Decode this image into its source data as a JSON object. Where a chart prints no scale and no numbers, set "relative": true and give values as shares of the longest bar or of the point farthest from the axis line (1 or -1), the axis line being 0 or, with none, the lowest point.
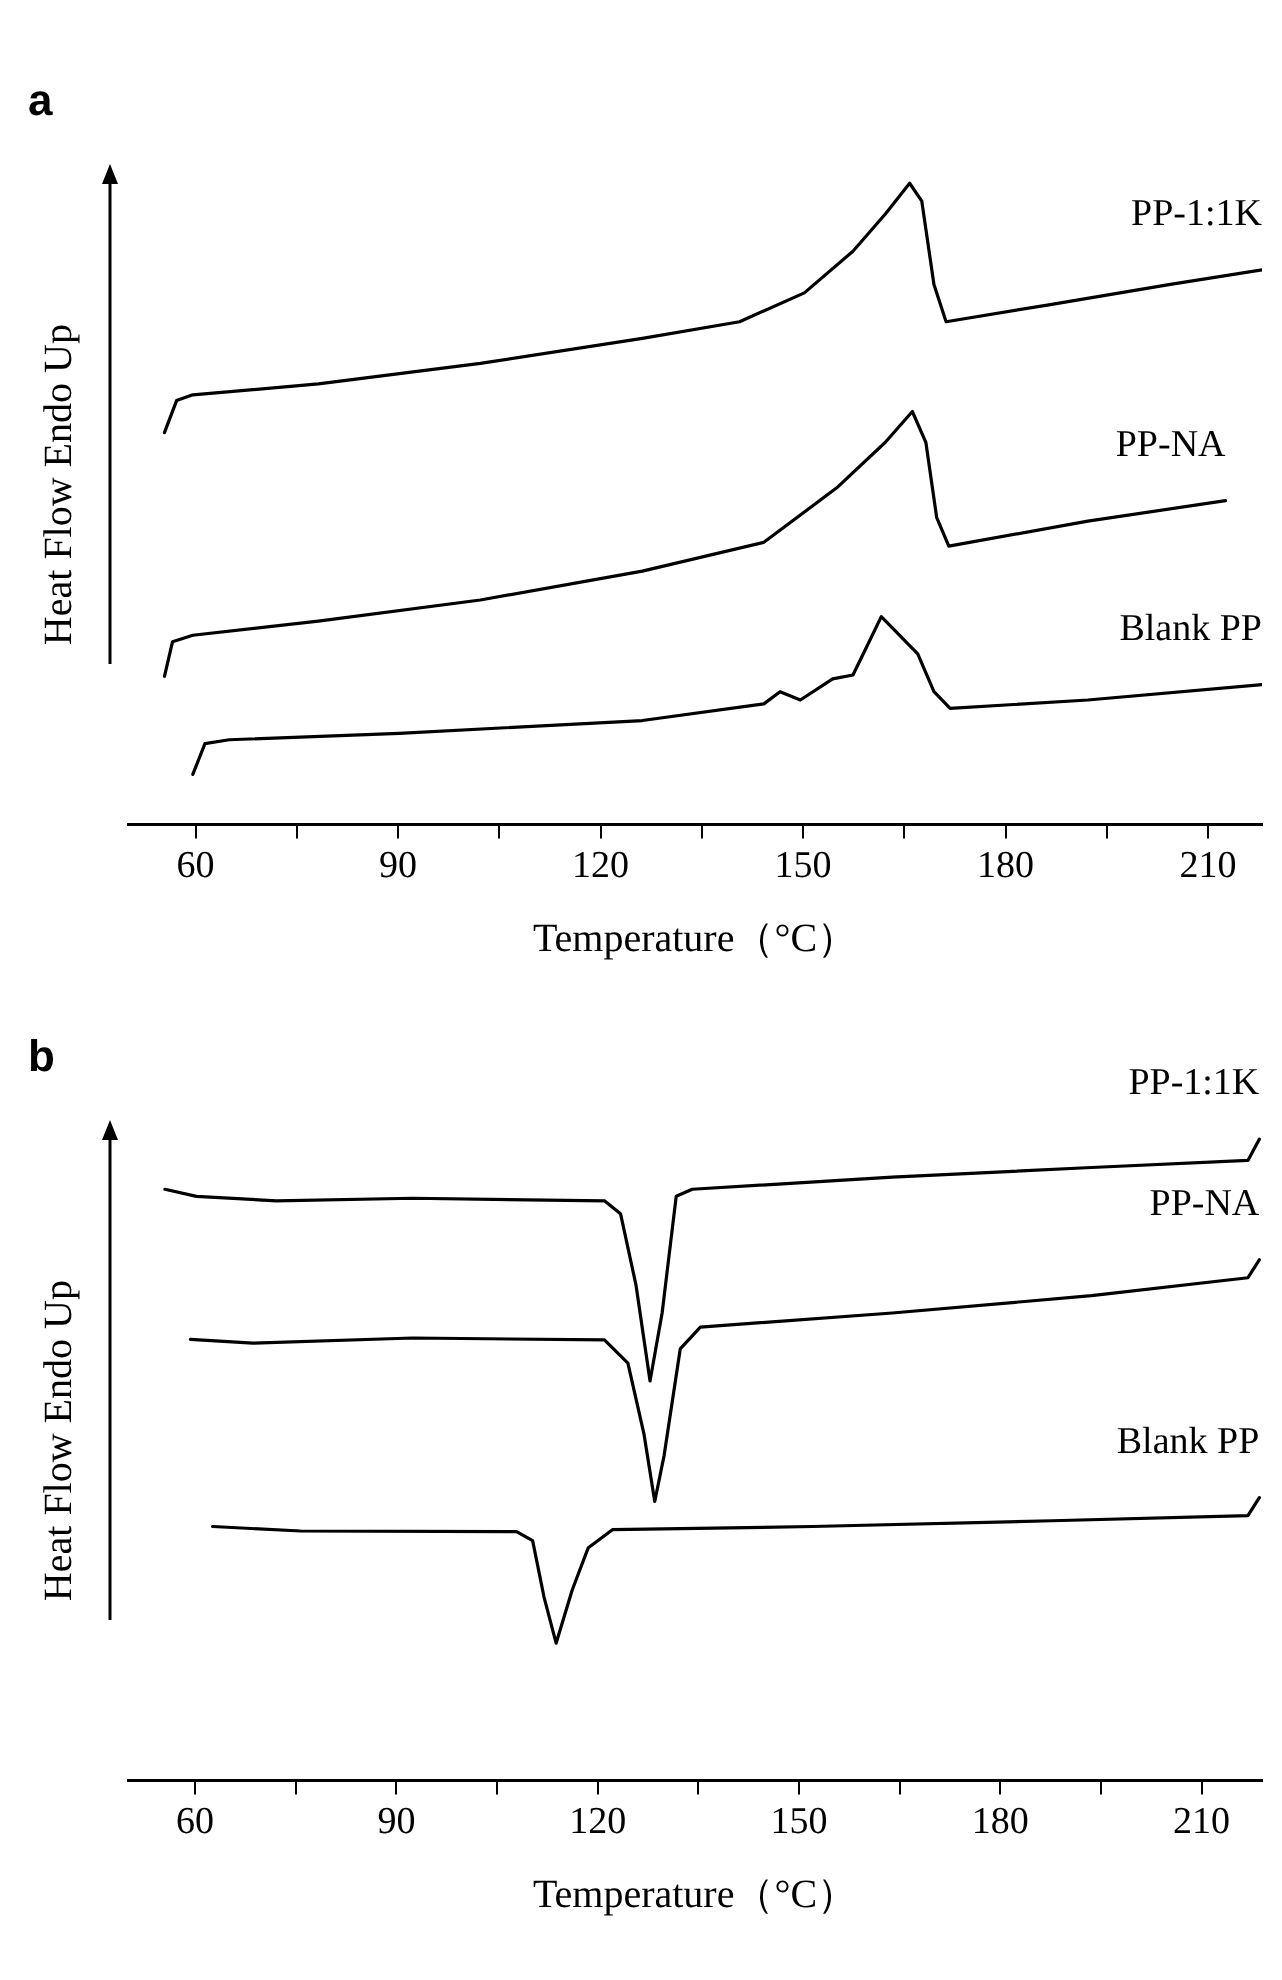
{
  "chart_data": [
    {
      "type": "line",
      "title": "a",
      "xlabel": "Temperature（°C）",
      "ylabel": "Heat Flow Endo Up",
      "relative": true,
      "tick_labels": "x",
      "grid": false,
      "legend": false,
      "marker": "none",
      "line_style": "solid",
      "xlim": [
        50,
        218
      ],
      "xticks": [
        60,
        {
          "value": 75,
          "label": null
        },
        90,
        {
          "value": 105,
          "label": null
        },
        120,
        {
          "value": 135,
          "label": null
        },
        150,
        {
          "value": 165,
          "label": null
        },
        180,
        {
          "value": 195,
          "label": null
        },
        210
      ],
      "series": [
        {
          "name": "PP-1:1K",
          "color": "#000000",
          "x": [
            55.4,
            57.2,
            59.6,
            78.2,
            102.2,
            126.2,
            140.6,
            150.2,
            157.4,
            162.2,
            165.8,
            167.6,
            169.4,
            171.2,
            186.2,
            204.2,
            218
          ],
          "values": [
            0.611,
            0.661,
            0.67,
            0.687,
            0.719,
            0.758,
            0.784,
            0.829,
            0.894,
            0.952,
            1.0,
            0.972,
            0.842,
            0.784,
            0.81,
            0.842,
            0.865
          ]
        },
        {
          "name": "PP-NA",
          "color": "#000000",
          "x": [
            55.4,
            56.6,
            59.6,
            78.2,
            102.2,
            126.2,
            144.2,
            155,
            162.2,
            166.2,
            168.2,
            169.8,
            171.6,
            192.2,
            212.6
          ],
          "values": [
            0.231,
            0.285,
            0.295,
            0.317,
            0.35,
            0.395,
            0.44,
            0.525,
            0.596,
            0.644,
            0.596,
            0.479,
            0.434,
            0.473,
            0.505
          ]
        },
        {
          "name": "Blank PP",
          "color": "#000000",
          "x": [
            59.6,
            61.4,
            65,
            90.2,
            126.2,
            144.2,
            146.6,
            149.6,
            154.4,
            157.4,
            159.8,
            161.6,
            167,
            169.4,
            171.8,
            192.2,
            218
          ],
          "values": [
            0.078,
            0.126,
            0.132,
            0.142,
            0.162,
            0.188,
            0.207,
            0.194,
            0.227,
            0.233,
            0.285,
            0.324,
            0.266,
            0.207,
            0.181,
            0.194,
            0.218
          ]
        }
      ]
    },
    {
      "type": "line",
      "title": "b",
      "xlabel": "Temperature（°C）",
      "ylabel": "Heat Flow Endo Up",
      "relative": true,
      "tick_labels": "x",
      "grid": false,
      "legend": false,
      "marker": "none",
      "line_style": "solid",
      "xlim": [
        50,
        219
      ],
      "xticks": [
        60,
        {
          "value": 75,
          "label": null
        },
        90,
        {
          "value": 105,
          "label": null
        },
        120,
        {
          "value": 135,
          "label": null
        },
        150,
        {
          "value": 165,
          "label": null
        },
        180,
        {
          "value": 195,
          "label": null
        },
        210
      ],
      "series": [
        {
          "name": "PP-1:1K",
          "color": "#000000",
          "x": [
            55.5,
            60.2,
            72.1,
            92.4,
            121,
            123.4,
            125.7,
            127.8,
            129.6,
            131.7,
            134.1,
            163.9,
            193.6,
            216.9,
            218.6
          ],
          "values": [
            0.922,
            0.911,
            0.904,
            0.908,
            0.904,
            0.884,
            0.773,
            0.623,
            0.729,
            0.911,
            0.922,
            0.941,
            0.956,
            0.967,
            1.0
          ]
        },
        {
          "name": "PP-NA",
          "color": "#000000",
          "x": [
            59.3,
            68.6,
            92.4,
            121,
            124.5,
            126.9,
            128.5,
            129.9,
            132.3,
            135.3,
            163.9,
            193.6,
            216.9,
            218.6
          ],
          "values": [
            0.688,
            0.682,
            0.69,
            0.687,
            0.651,
            0.54,
            0.435,
            0.507,
            0.673,
            0.707,
            0.729,
            0.756,
            0.784,
            0.812
          ]
        },
        {
          "name": "Blank PP",
          "color": "#000000",
          "x": [
            62.6,
            75.7,
            107.9,
            110.3,
            112,
            113.8,
            116.2,
            118.6,
            122.2,
            152,
            187.7,
            216.9,
            218.6
          ],
          "values": [
            0.396,
            0.389,
            0.388,
            0.374,
            0.286,
            0.214,
            0.297,
            0.363,
            0.391,
            0.396,
            0.405,
            0.413,
            0.441
          ]
        }
      ]
    }
  ]
}
